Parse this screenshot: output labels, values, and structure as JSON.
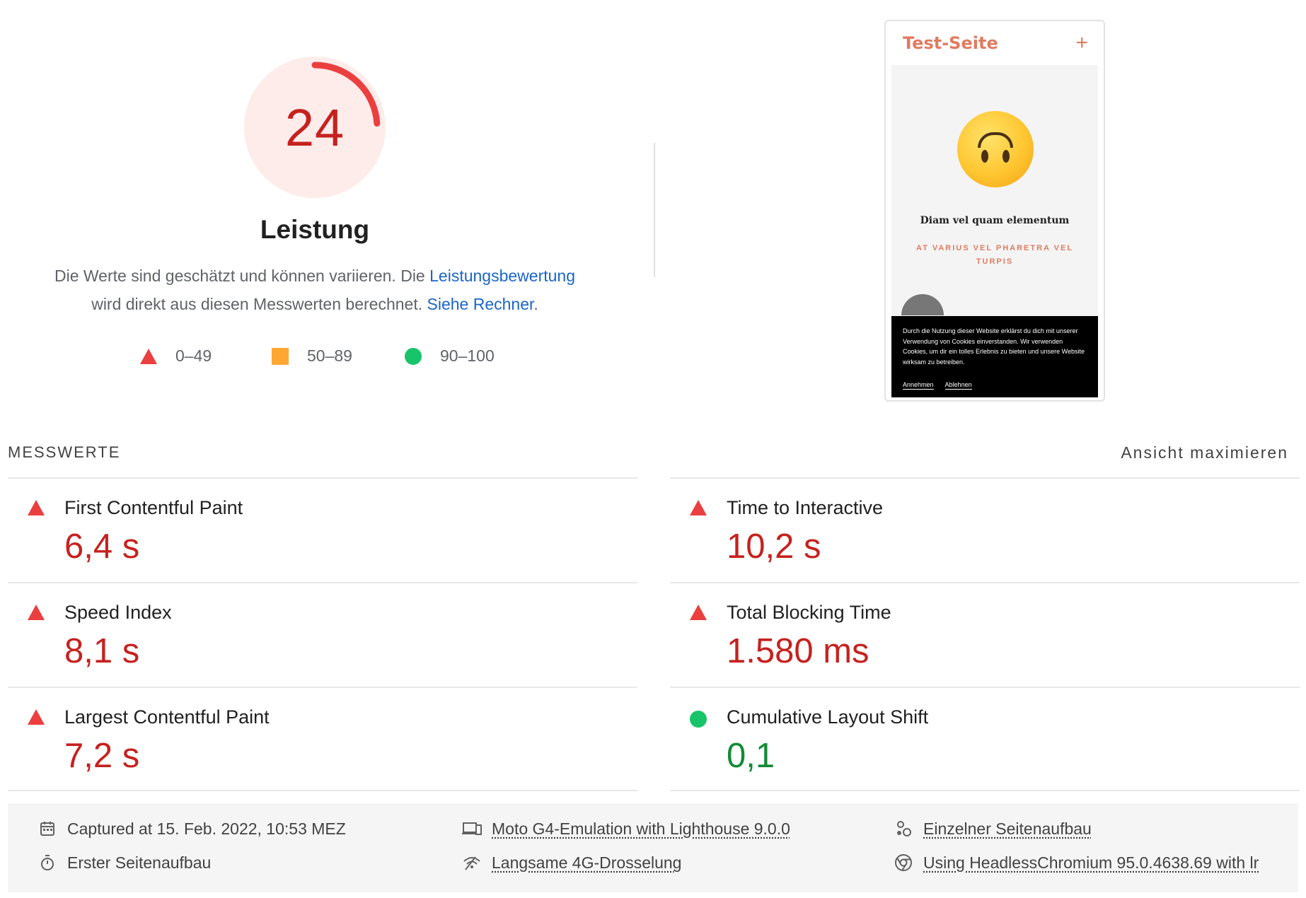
{
  "summary": {
    "score": "24",
    "score_fraction": 0.24,
    "title": "Leistung",
    "desc_part1": "Die Werte sind geschätzt und können variieren. Die ",
    "desc_link1": "Leistungsbewertung",
    "desc_part2": "wird direkt aus diesen Messwerten berechnet. ",
    "desc_link2": "Siehe Rechner",
    "desc_part3": ".",
    "legend": [
      {
        "range": "0–49",
        "icon": "fail-triangle-icon",
        "color": "#eb3f3f"
      },
      {
        "range": "50–89",
        "icon": "average-square-icon",
        "color": "#ffa732"
      },
      {
        "range": "90–100",
        "icon": "pass-circle-icon",
        "color": "#18c46a"
      }
    ]
  },
  "screenshot": {
    "title": "Test-Seite",
    "plus": "+",
    "heading": "Diam vel quam elementum",
    "subheading": "AT VARIUS VEL PHARETRA VEL TURPIS",
    "cookie_text": "Durch die Nutzung dieser Website erklärst du dich mit unserer Verwendung von Cookies einverstanden. Wir verwenden Cookies, um dir ein tolles Erlebnis zu bieten und unsere Website wirksam zu betreiben.",
    "accept": "Annehmen",
    "decline": "Ablehnen"
  },
  "metrics": {
    "label": "MESSWERTE",
    "toggle": "Ansicht maximieren",
    "left": [
      {
        "name": "First Contentful Paint",
        "value": "6,4 s",
        "status": "fail"
      },
      {
        "name": "Speed Index",
        "value": "8,1 s",
        "status": "fail"
      },
      {
        "name": "Largest Contentful Paint",
        "value": "7,2 s",
        "status": "fail"
      }
    ],
    "right": [
      {
        "name": "Time to Interactive",
        "value": "10,2 s",
        "status": "fail"
      },
      {
        "name": "Total Blocking Time",
        "value": "1.580 ms",
        "status": "fail"
      },
      {
        "name": "Cumulative Layout Shift",
        "value": "0,1",
        "status": "pass"
      }
    ]
  },
  "runtime": {
    "captured": "Captured at 15. Feb. 2022, 10:53 MEZ",
    "first_load": "Erster Seitenaufbau",
    "device": "Moto G4-Emulation with Lighthouse 9.0.0",
    "throttling": "Langsame 4G-Drosselung",
    "single_load": "Einzelner Seitenaufbau",
    "browser": "Using HeadlessChromium 95.0.4638.69 with lr"
  },
  "colors": {
    "fail": "#c5221f",
    "pass": "#138a36",
    "gauge_arc": "#eb3f3f",
    "gauge_bg": "#fdecea",
    "link": "#1a66c9"
  }
}
